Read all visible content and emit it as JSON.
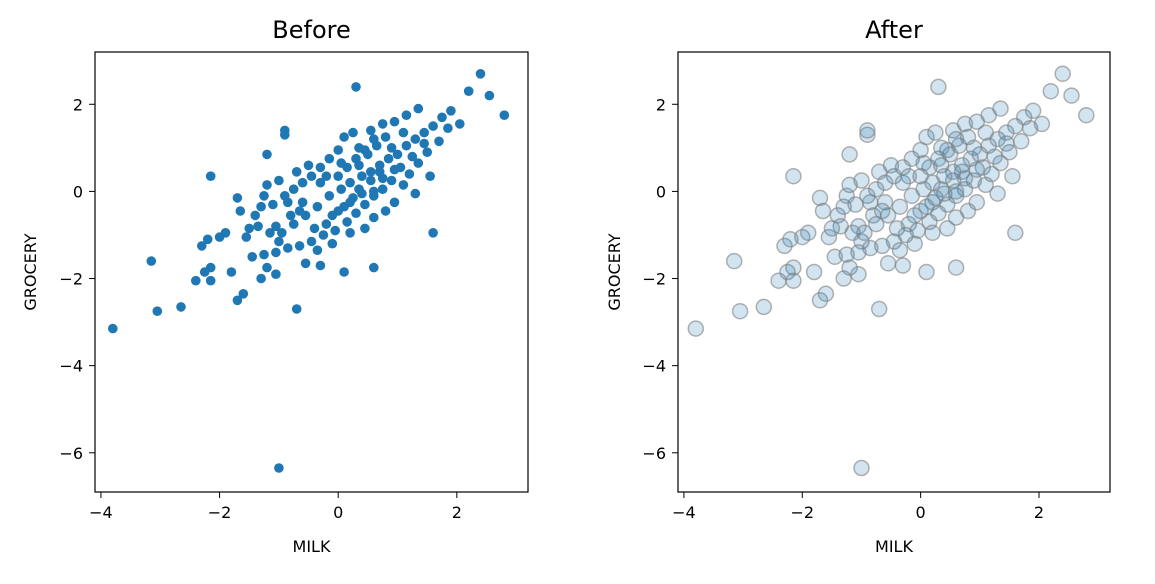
{
  "chart_data": [
    {
      "type": "scatter",
      "title": "Before",
      "xlabel": "MILK",
      "ylabel": "GROCERY",
      "xlim": [
        -4.1,
        3.2
      ],
      "ylim": [
        -6.9,
        3.2
      ],
      "xticks": [
        -4,
        -2,
        0,
        2
      ],
      "yticks": [
        -6,
        -4,
        -2,
        0,
        2
      ],
      "xtick_labels": [
        "−4",
        "−2",
        "0",
        "2"
      ],
      "ytick_labels": [
        "−6",
        "−4",
        "−2",
        "0",
        "2"
      ],
      "grid": false,
      "style": {
        "color": "#1f77b4",
        "alpha": 1.0,
        "marker_outline": false
      },
      "points": [
        [
          -3.8,
          -3.15
        ],
        [
          -3.05,
          -2.75
        ],
        [
          -2.65,
          -2.65
        ],
        [
          -3.15,
          -1.6
        ],
        [
          -2.4,
          -2.05
        ],
        [
          -2.3,
          -1.25
        ],
        [
          -2.2,
          -1.1
        ],
        [
          -2.0,
          -1.05
        ],
        [
          -2.15,
          -1.75
        ],
        [
          -2.25,
          -1.85
        ],
        [
          -1.8,
          -1.85
        ],
        [
          -1.7,
          -2.5
        ],
        [
          -1.6,
          -2.35
        ],
        [
          -2.15,
          -2.05
        ],
        [
          -1.2,
          -1.75
        ],
        [
          -1.3,
          -2.0
        ],
        [
          -1.05,
          -1.9
        ],
        [
          -0.7,
          -2.7
        ],
        [
          -1.0,
          -6.35
        ],
        [
          0.1,
          -1.85
        ],
        [
          -2.15,
          0.35
        ],
        [
          -1.2,
          0.85
        ],
        [
          -0.9,
          1.3
        ],
        [
          -0.9,
          1.4
        ],
        [
          -0.55,
          -1.65
        ],
        [
          -0.3,
          -1.7
        ],
        [
          0.6,
          -1.75
        ],
        [
          1.6,
          -0.95
        ],
        [
          2.4,
          2.7
        ],
        [
          2.55,
          2.2
        ],
        [
          2.8,
          1.75
        ],
        [
          2.2,
          2.3
        ],
        [
          -1.0,
          -1.15
        ],
        [
          -1.05,
          -0.8
        ],
        [
          -1.4,
          -0.55
        ],
        [
          -1.55,
          -1.05
        ],
        [
          -1.3,
          -0.35
        ],
        [
          -1.65,
          -0.45
        ],
        [
          -1.7,
          -0.15
        ],
        [
          -1.2,
          0.15
        ],
        [
          -0.8,
          -0.55
        ],
        [
          -0.6,
          -0.25
        ],
        [
          -0.4,
          -0.85
        ],
        [
          -0.2,
          -0.75
        ],
        [
          0.0,
          -0.45
        ],
        [
          0.2,
          -0.25
        ],
        [
          0.4,
          -0.05
        ],
        [
          0.55,
          0.25
        ],
        [
          0.7,
          0.45
        ],
        [
          0.85,
          0.75
        ],
        [
          1.0,
          0.85
        ],
        [
          1.15,
          1.05
        ],
        [
          1.3,
          1.2
        ],
        [
          1.45,
          1.35
        ],
        [
          1.6,
          1.5
        ],
        [
          1.75,
          1.7
        ],
        [
          1.9,
          1.85
        ],
        [
          1.05,
          0.55
        ],
        [
          0.9,
          0.25
        ],
        [
          0.75,
          0.05
        ],
        [
          0.6,
          -0.1
        ],
        [
          0.45,
          -0.3
        ],
        [
          0.3,
          -0.5
        ],
        [
          0.15,
          -0.7
        ],
        [
          -0.05,
          -0.9
        ],
        [
          -0.25,
          -1.0
        ],
        [
          -0.45,
          -1.15
        ],
        [
          -0.65,
          -1.25
        ],
        [
          -0.85,
          -1.3
        ],
        [
          -1.05,
          -1.4
        ],
        [
          -1.25,
          -1.45
        ],
        [
          -1.45,
          -1.5
        ],
        [
          0.35,
          0.6
        ],
        [
          0.5,
          0.85
        ],
        [
          0.65,
          1.05
        ],
        [
          0.8,
          1.25
        ],
        [
          0.25,
          1.35
        ],
        [
          0.1,
          1.25
        ],
        [
          0.0,
          0.95
        ],
        [
          -0.15,
          0.75
        ],
        [
          -0.3,
          0.55
        ],
        [
          -0.45,
          0.35
        ],
        [
          -0.6,
          0.2
        ],
        [
          -0.75,
          0.05
        ],
        [
          -0.9,
          -0.1
        ],
        [
          -1.1,
          -0.3
        ],
        [
          -0.3,
          0.2
        ],
        [
          0.0,
          0.35
        ],
        [
          0.15,
          0.55
        ],
        [
          0.3,
          0.75
        ],
        [
          0.45,
          0.95
        ],
        [
          1.2,
          0.4
        ],
        [
          1.35,
          0.65
        ],
        [
          1.5,
          0.9
        ],
        [
          1.3,
          -0.05
        ],
        [
          1.1,
          0.15
        ],
        [
          0.95,
          -0.25
        ],
        [
          0.6,
          -0.6
        ],
        [
          0.45,
          -0.85
        ],
        [
          0.2,
          -0.95
        ],
        [
          -0.1,
          -1.2
        ],
        [
          -0.35,
          -1.35
        ],
        [
          -0.55,
          -0.55
        ],
        [
          -0.75,
          -0.75
        ],
        [
          -0.95,
          -0.95
        ],
        [
          -1.15,
          -0.95
        ],
        [
          -0.5,
          0.6
        ],
        [
          -0.7,
          0.45
        ],
        [
          -1.0,
          0.25
        ],
        [
          -1.25,
          -0.1
        ],
        [
          0.95,
          1.6
        ],
        [
          1.15,
          1.75
        ],
        [
          1.35,
          1.9
        ],
        [
          0.75,
          1.55
        ],
        [
          0.55,
          1.4
        ],
        [
          0.35,
          0.05
        ],
        [
          0.05,
          0.05
        ],
        [
          -0.15,
          -0.1
        ],
        [
          -0.35,
          -0.35
        ],
        [
          0.2,
          0.2
        ],
        [
          0.7,
          0.6
        ],
        [
          0.9,
          1.0
        ],
        [
          1.1,
          1.35
        ],
        [
          0.55,
          0.45
        ],
        [
          0.4,
          0.35
        ],
        [
          0.25,
          -0.15
        ],
        [
          0.1,
          -0.35
        ],
        [
          -0.1,
          -0.55
        ],
        [
          1.7,
          1.15
        ],
        [
          1.85,
          1.45
        ],
        [
          2.05,
          1.55
        ],
        [
          1.55,
          0.35
        ],
        [
          0.8,
          -0.45
        ],
        [
          0.05,
          0.65
        ],
        [
          -0.2,
          0.35
        ],
        [
          -0.65,
          -0.45
        ],
        [
          -0.85,
          -0.25
        ],
        [
          -1.35,
          -0.8
        ],
        [
          -1.5,
          -0.85
        ],
        [
          -1.9,
          -0.95
        ],
        [
          0.3,
          2.4
        ],
        [
          0.6,
          0.0
        ],
        [
          0.75,
          0.3
        ],
        [
          0.95,
          0.5
        ],
        [
          1.25,
          0.8
        ],
        [
          1.45,
          1.1
        ],
        [
          0.35,
          1.0
        ],
        [
          0.6,
          1.2
        ]
      ]
    },
    {
      "type": "scatter",
      "title": "After",
      "xlabel": "MILK",
      "ylabel": "GROCERY",
      "xlim": [
        -4.1,
        3.2
      ],
      "ylim": [
        -6.9,
        3.2
      ],
      "xticks": [
        -4,
        -2,
        0,
        2
      ],
      "yticks": [
        -6,
        -4,
        -2,
        0,
        2
      ],
      "xtick_labels": [
        "−4",
        "−2",
        "0",
        "2"
      ],
      "ytick_labels": [
        "−6",
        "−4",
        "−2",
        "0",
        "2"
      ],
      "grid": false,
      "style": {
        "color": "#1f77b4",
        "alpha": 0.2,
        "marker_outline": true,
        "outline_color": "#808080"
      },
      "points": "same as Before"
    }
  ]
}
